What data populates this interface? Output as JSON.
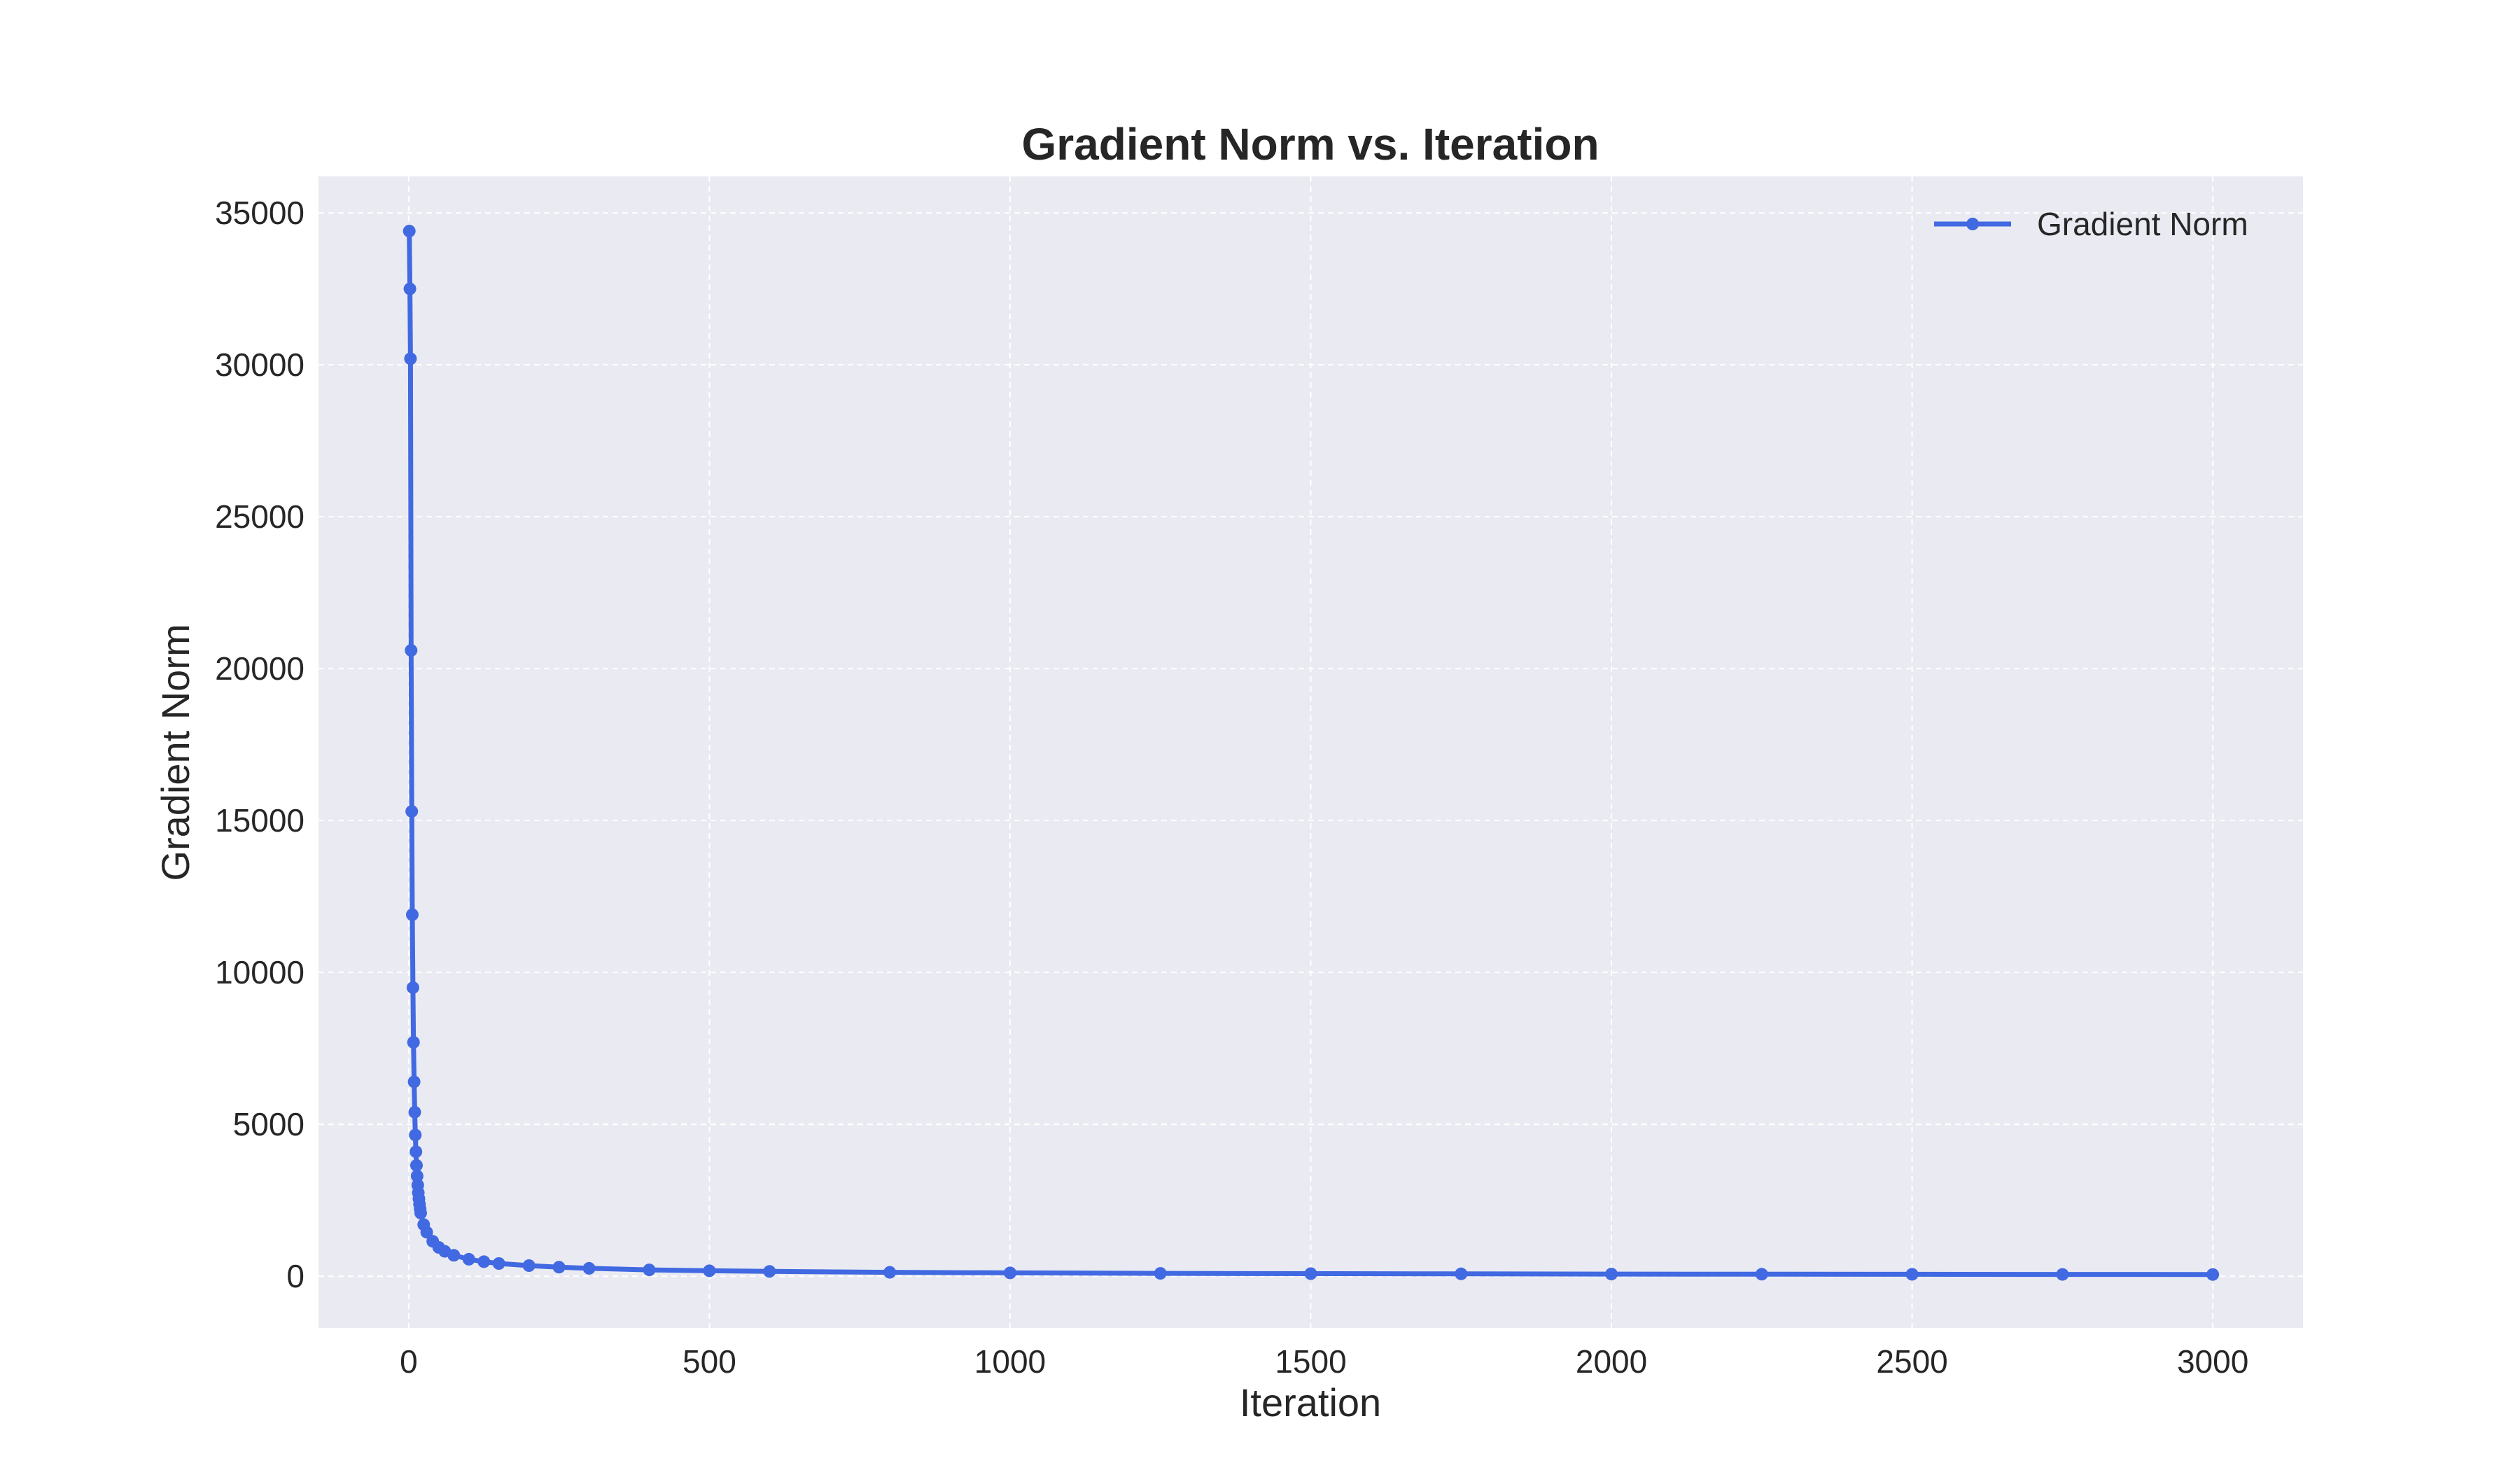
{
  "chart_data": {
    "type": "line",
    "title": "Gradient Norm vs. Iteration",
    "xlabel": "Iteration",
    "ylabel": "Gradient Norm",
    "xlim": [
      -150,
      3150
    ],
    "ylim": [
      -1700,
      36200
    ],
    "xticks": [
      0,
      500,
      1000,
      1500,
      2000,
      2500,
      3000
    ],
    "yticks": [
      0,
      5000,
      10000,
      15000,
      20000,
      25000,
      30000,
      35000
    ],
    "grid": true,
    "legend_position": "top-right",
    "series": [
      {
        "name": "Gradient Norm",
        "color": "#4169E1",
        "marker": "circle",
        "x": [
          1,
          2,
          3,
          4,
          5,
          6,
          7,
          8,
          9,
          10,
          11,
          12,
          13,
          14,
          15,
          16,
          17,
          18,
          19,
          20,
          25,
          30,
          40,
          50,
          60,
          75,
          100,
          125,
          150,
          200,
          250,
          300,
          400,
          500,
          600,
          800,
          1000,
          1250,
          1500,
          1750,
          2000,
          2250,
          2500,
          2750,
          3000
        ],
        "y": [
          34400,
          32500,
          30200,
          20600,
          15300,
          11900,
          9500,
          7700,
          6400,
          5400,
          4650,
          4100,
          3650,
          3300,
          3000,
          2750,
          2550,
          2370,
          2220,
          2080,
          1700,
          1450,
          1150,
          950,
          820,
          690,
          560,
          480,
          420,
          350,
          300,
          260,
          210,
          180,
          160,
          130,
          110,
          95,
          85,
          78,
          72,
          68,
          64,
          60,
          57
        ]
      }
    ]
  }
}
